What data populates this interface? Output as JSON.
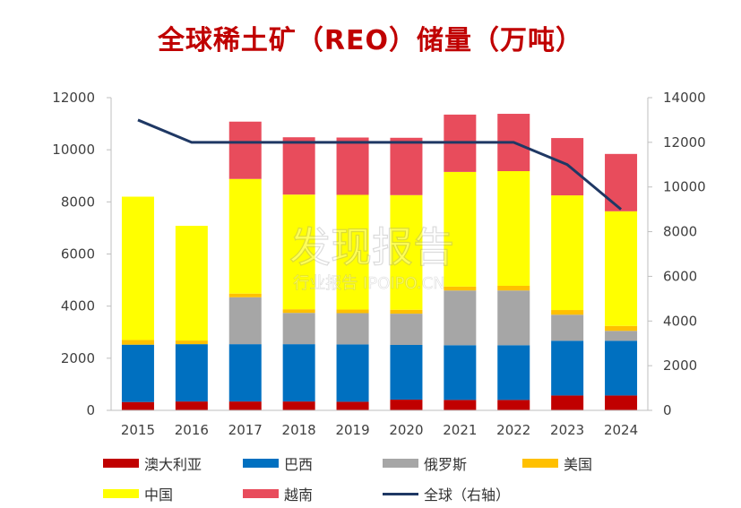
{
  "chart_data": {
    "type": "bar",
    "stacked": true,
    "title": "全球稀土矿（REO）储量（万吨）",
    "categories": [
      "2015",
      "2016",
      "2017",
      "2018",
      "2019",
      "2020",
      "2021",
      "2022",
      "2023",
      "2024"
    ],
    "y_left": {
      "min": 0,
      "max": 12000,
      "ticks": [
        0,
        2000,
        4000,
        6000,
        8000,
        10000,
        12000
      ]
    },
    "y_right": {
      "min": 0,
      "max": 14000,
      "ticks": [
        0,
        2000,
        4000,
        6000,
        8000,
        10000,
        12000,
        14000
      ]
    },
    "series": [
      {
        "name": "澳大利亚",
        "color": "#C00000",
        "axis": "left",
        "values": [
          320,
          340,
          340,
          340,
          330,
          410,
          400,
          400,
          570,
          570
        ]
      },
      {
        "name": "巴西",
        "color": "#0070C0",
        "axis": "left",
        "values": [
          2200,
          2200,
          2200,
          2200,
          2200,
          2100,
          2100,
          2100,
          2100,
          2100
        ]
      },
      {
        "name": "俄罗斯",
        "color": "#A6A6A6",
        "axis": "left",
        "values": [
          0,
          0,
          1800,
          1200,
          1200,
          1200,
          2100,
          2100,
          1000,
          380
        ]
      },
      {
        "name": "美国",
        "color": "#FFC000",
        "axis": "left",
        "values": [
          180,
          140,
          140,
          140,
          140,
          150,
          150,
          180,
          180,
          190
        ]
      },
      {
        "name": "中国",
        "color": "#FFFF00",
        "axis": "left",
        "values": [
          5500,
          4400,
          4400,
          4400,
          4400,
          4400,
          4400,
          4400,
          4400,
          4400
        ]
      },
      {
        "name": "越南",
        "color": "#E84C5C",
        "axis": "left",
        "values": [
          0,
          0,
          2200,
          2200,
          2200,
          2200,
          2200,
          2200,
          2200,
          2200
        ]
      }
    ],
    "line_series": {
      "name": "全球（右轴）",
      "color": "#1F3864",
      "axis": "right",
      "values": [
        13000,
        12000,
        12000,
        12000,
        12000,
        12000,
        12000,
        12000,
        11000,
        9000
      ]
    },
    "legend_position": "bottom",
    "grid": false
  },
  "watermark": {
    "logo": "发现报告",
    "sub": "行业报告 IPOIPO.CN"
  }
}
